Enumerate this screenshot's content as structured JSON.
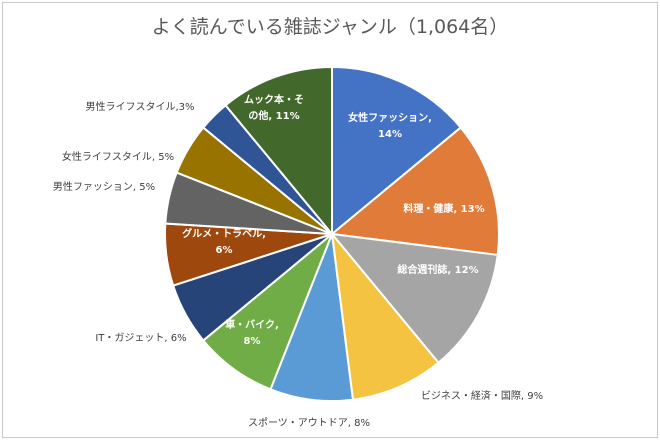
{
  "chart_data": {
    "type": "pie",
    "title": "よく読んでいる雑誌ジャンル（1,064名）",
    "categories": [
      "女性ファッション",
      "料理・健康",
      "総合週刊誌",
      "ビジネス・経済・国際",
      "スポーツ・アウトドア",
      "車・バイク",
      "IT・ガジェット",
      "グルメ・トラベル",
      "男性ファッション",
      "女性ライフスタイル",
      "男性ライフスタイル",
      "ムック本・その他"
    ],
    "values": [
      14,
      13,
      12,
      9,
      8,
      8,
      6,
      6,
      5,
      5,
      3,
      11
    ],
    "unit": "%",
    "colors": [
      "#4472c4",
      "#e07b39",
      "#a5a5a5",
      "#f5c342",
      "#5b9bd5",
      "#70ad47",
      "#264478",
      "#9e480e",
      "#636363",
      "#997300",
      "#2f5597",
      "#43682b"
    ],
    "label_lines": [
      [
        "女性ファッション,",
        "14%"
      ],
      [
        "料理・健康, 13%"
      ],
      [
        "総合週刊誌, 12%"
      ],
      [
        "ビジネス・経済・国際, 9%"
      ],
      [
        "スポーツ・アウトドア, 8%"
      ],
      [
        "車・バイク,",
        "8%"
      ],
      [
        "IT・ガジェット, 6%"
      ],
      [
        "グルメ・トラベル,",
        "6%"
      ],
      [
        "男性ファッション, 5%"
      ],
      [
        "女性ライフスタイル, 5%"
      ],
      [
        "男性ライフスタイル,3%"
      ],
      [
        "ムック本・そ",
        "の他, 11%"
      ]
    ]
  }
}
